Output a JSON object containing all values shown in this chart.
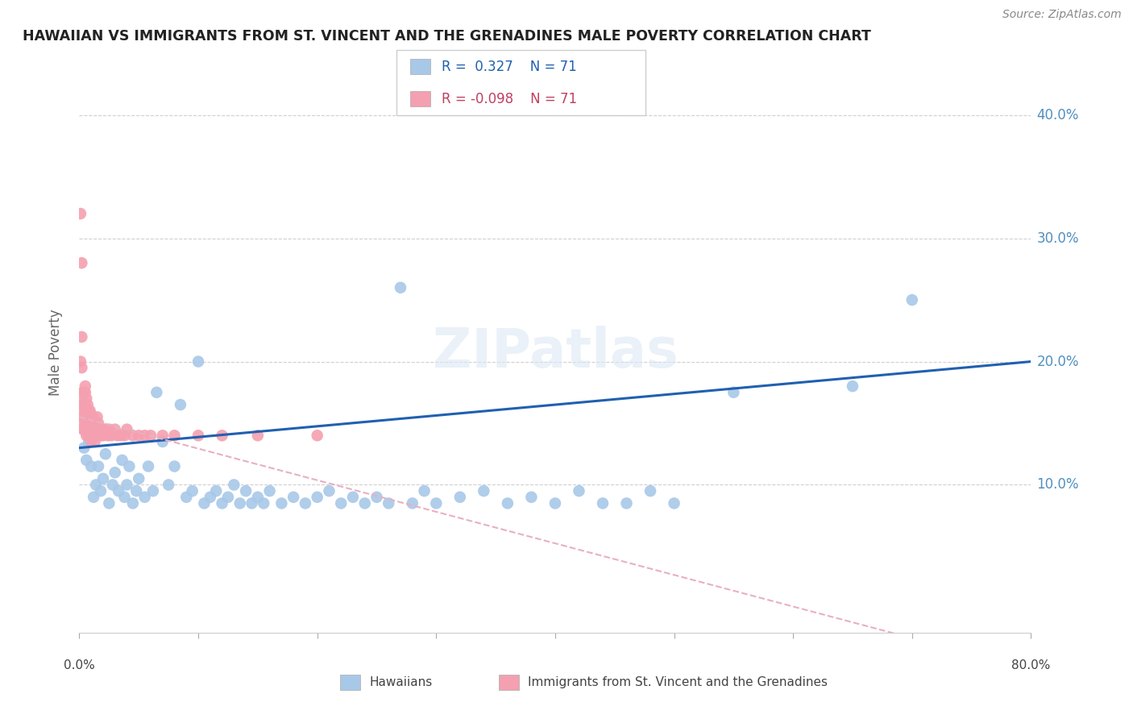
{
  "title": "HAWAIIAN VS IMMIGRANTS FROM ST. VINCENT AND THE GRENADINES MALE POVERTY CORRELATION CHART",
  "source": "Source: ZipAtlas.com",
  "ylabel": "Male Poverty",
  "ytick_labels": [
    "10.0%",
    "20.0%",
    "30.0%",
    "40.0%"
  ],
  "ytick_values": [
    0.1,
    0.2,
    0.3,
    0.4
  ],
  "xlim": [
    0.0,
    0.8
  ],
  "ylim": [
    -0.02,
    0.435
  ],
  "hawaiian_color": "#a8c8e8",
  "immigrant_color": "#f4a0b0",
  "trend_color_hawaiian": "#2060b0",
  "trend_color_immigrant": "#e8b0c0",
  "background_color": "#ffffff",
  "grid_color": "#d0d0d0",
  "hawaiian_x": [
    0.004,
    0.006,
    0.008,
    0.01,
    0.012,
    0.014,
    0.016,
    0.018,
    0.02,
    0.022,
    0.025,
    0.028,
    0.03,
    0.033,
    0.036,
    0.038,
    0.04,
    0.042,
    0.045,
    0.048,
    0.05,
    0.055,
    0.058,
    0.062,
    0.065,
    0.07,
    0.075,
    0.08,
    0.085,
    0.09,
    0.095,
    0.1,
    0.105,
    0.11,
    0.115,
    0.12,
    0.125,
    0.13,
    0.135,
    0.14,
    0.145,
    0.15,
    0.155,
    0.16,
    0.17,
    0.18,
    0.19,
    0.2,
    0.21,
    0.22,
    0.23,
    0.24,
    0.25,
    0.26,
    0.27,
    0.28,
    0.29,
    0.3,
    0.32,
    0.34,
    0.36,
    0.38,
    0.4,
    0.42,
    0.44,
    0.46,
    0.48,
    0.5,
    0.55,
    0.65,
    0.7
  ],
  "hawaiian_y": [
    0.13,
    0.12,
    0.135,
    0.115,
    0.09,
    0.1,
    0.115,
    0.095,
    0.105,
    0.125,
    0.085,
    0.1,
    0.11,
    0.095,
    0.12,
    0.09,
    0.1,
    0.115,
    0.085,
    0.095,
    0.105,
    0.09,
    0.115,
    0.095,
    0.175,
    0.135,
    0.1,
    0.115,
    0.165,
    0.09,
    0.095,
    0.2,
    0.085,
    0.09,
    0.095,
    0.085,
    0.09,
    0.1,
    0.085,
    0.095,
    0.085,
    0.09,
    0.085,
    0.095,
    0.085,
    0.09,
    0.085,
    0.09,
    0.095,
    0.085,
    0.09,
    0.085,
    0.09,
    0.085,
    0.26,
    0.085,
    0.095,
    0.085,
    0.09,
    0.095,
    0.085,
    0.09,
    0.085,
    0.095,
    0.085,
    0.085,
    0.095,
    0.085,
    0.175,
    0.18,
    0.25
  ],
  "immigrant_x": [
    0.001,
    0.001,
    0.001,
    0.002,
    0.002,
    0.002,
    0.002,
    0.003,
    0.003,
    0.003,
    0.003,
    0.003,
    0.004,
    0.004,
    0.004,
    0.004,
    0.005,
    0.005,
    0.005,
    0.005,
    0.005,
    0.006,
    0.006,
    0.006,
    0.006,
    0.007,
    0.007,
    0.007,
    0.008,
    0.008,
    0.008,
    0.009,
    0.009,
    0.009,
    0.01,
    0.01,
    0.01,
    0.011,
    0.011,
    0.012,
    0.012,
    0.013,
    0.013,
    0.014,
    0.015,
    0.015,
    0.016,
    0.016,
    0.017,
    0.018,
    0.019,
    0.02,
    0.022,
    0.024,
    0.025,
    0.027,
    0.03,
    0.032,
    0.035,
    0.038,
    0.04,
    0.045,
    0.05,
    0.055,
    0.06,
    0.07,
    0.08,
    0.1,
    0.12,
    0.15,
    0.2
  ],
  "immigrant_y": [
    0.32,
    0.2,
    0.15,
    0.28,
    0.22,
    0.195,
    0.17,
    0.175,
    0.165,
    0.16,
    0.155,
    0.145,
    0.175,
    0.165,
    0.155,
    0.145,
    0.18,
    0.175,
    0.165,
    0.155,
    0.145,
    0.17,
    0.16,
    0.15,
    0.14,
    0.165,
    0.155,
    0.145,
    0.16,
    0.15,
    0.14,
    0.16,
    0.15,
    0.14,
    0.155,
    0.145,
    0.135,
    0.155,
    0.145,
    0.15,
    0.14,
    0.145,
    0.135,
    0.145,
    0.155,
    0.145,
    0.15,
    0.14,
    0.145,
    0.14,
    0.145,
    0.14,
    0.145,
    0.14,
    0.145,
    0.14,
    0.145,
    0.14,
    0.14,
    0.14,
    0.145,
    0.14,
    0.14,
    0.14,
    0.14,
    0.14,
    0.14,
    0.14,
    0.14,
    0.14,
    0.14
  ]
}
